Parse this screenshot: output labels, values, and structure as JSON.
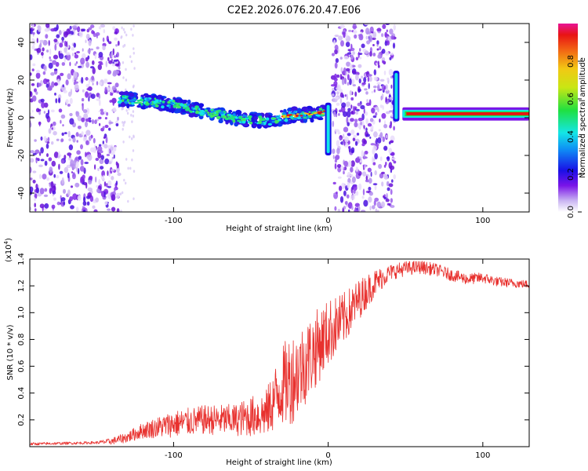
{
  "title": "C2E2.2026.076.20.47.E06",
  "colors": {
    "snr_line": "#e8312e",
    "plot_bg": "#ffffff",
    "axis": "#000000"
  },
  "chart_data": [
    {
      "type": "heatmap",
      "name": "spectrogram",
      "xlabel": "Height of straight line (km)",
      "ylabel": "Frequency (Hz)",
      "xlim": [
        -193,
        130
      ],
      "ylim": [
        -50,
        50
      ],
      "x_ticks": [
        -100,
        0,
        100
      ],
      "x_tick_labels": [
        "-100",
        "0",
        "100"
      ],
      "y_ticks": [
        -40,
        -20,
        0,
        20,
        40
      ],
      "y_tick_labels": [
        "-40",
        "-20",
        "0",
        "20",
        "40"
      ],
      "noise_bands_km": [
        [
          -193,
          -135
        ],
        [
          3,
          43
        ]
      ],
      "ridge_segments": [
        {
          "x": [
            -135,
            -120,
            -100,
            -80,
            -60,
            -40,
            -25,
            -10,
            -2
          ],
          "freq": [
            10,
            9,
            7,
            3,
            0,
            -2,
            1,
            2,
            3
          ]
        },
        {
          "x": [
            48,
            70,
            90,
            110,
            130
          ],
          "freq": [
            2,
            2,
            3,
            2,
            2
          ]
        }
      ],
      "spikes": [
        {
          "x": 0,
          "freq_from": 8,
          "freq_to": -20
        },
        {
          "x": 44,
          "freq_from": 25,
          "freq_to": -2
        }
      ],
      "colorbar": {
        "label": "Normalized spectral amplitude",
        "range": [
          0,
          1
        ],
        "ticks": [
          0.0,
          0.2,
          0.4,
          0.6,
          0.8
        ],
        "tick_labels": [
          "0.0",
          "0.2",
          "0.4",
          "0.6",
          "0.8"
        ]
      }
    },
    {
      "type": "line",
      "name": "snr",
      "xlabel": "Height of straight line (km)",
      "ylabel": "SNR (10 * v/v)",
      "exponent_label": "(x10",
      "exponent_sup": "4",
      "exponent_close": ")",
      "xlim": [
        -193,
        130
      ],
      "ylim": [
        0,
        1.4
      ],
      "x_ticks": [
        -100,
        0,
        100
      ],
      "x_tick_labels": [
        "-100",
        "0",
        "100"
      ],
      "y_ticks": [
        0.2,
        0.4,
        0.6,
        0.8,
        1.0,
        1.2,
        1.4
      ],
      "y_tick_labels": [
        "0.2",
        "0.4",
        "0.6",
        "0.8",
        "1.0",
        "1.2",
        "1.4"
      ],
      "trend_x": [
        -193,
        -150,
        -140,
        -130,
        -120,
        -100,
        -80,
        -60,
        -40,
        -30,
        -20,
        -10,
        0,
        10,
        20,
        30,
        40,
        50,
        60,
        70,
        80,
        90,
        100,
        110,
        120,
        130
      ],
      "trend_y": [
        0.02,
        0.03,
        0.04,
        0.07,
        0.12,
        0.17,
        0.2,
        0.2,
        0.25,
        0.45,
        0.55,
        0.7,
        0.85,
        0.95,
        1.1,
        1.22,
        1.3,
        1.33,
        1.34,
        1.32,
        1.28,
        1.25,
        1.26,
        1.23,
        1.22,
        1.21
      ],
      "noise_amp_x": [
        -193,
        -150,
        -130,
        -100,
        -60,
        -40,
        -25,
        -10,
        0,
        20,
        40,
        60,
        100,
        130
      ],
      "noise_amp_y": [
        0.01,
        0.01,
        0.04,
        0.1,
        0.12,
        0.18,
        0.35,
        0.3,
        0.25,
        0.15,
        0.06,
        0.05,
        0.04,
        0.03
      ]
    }
  ]
}
